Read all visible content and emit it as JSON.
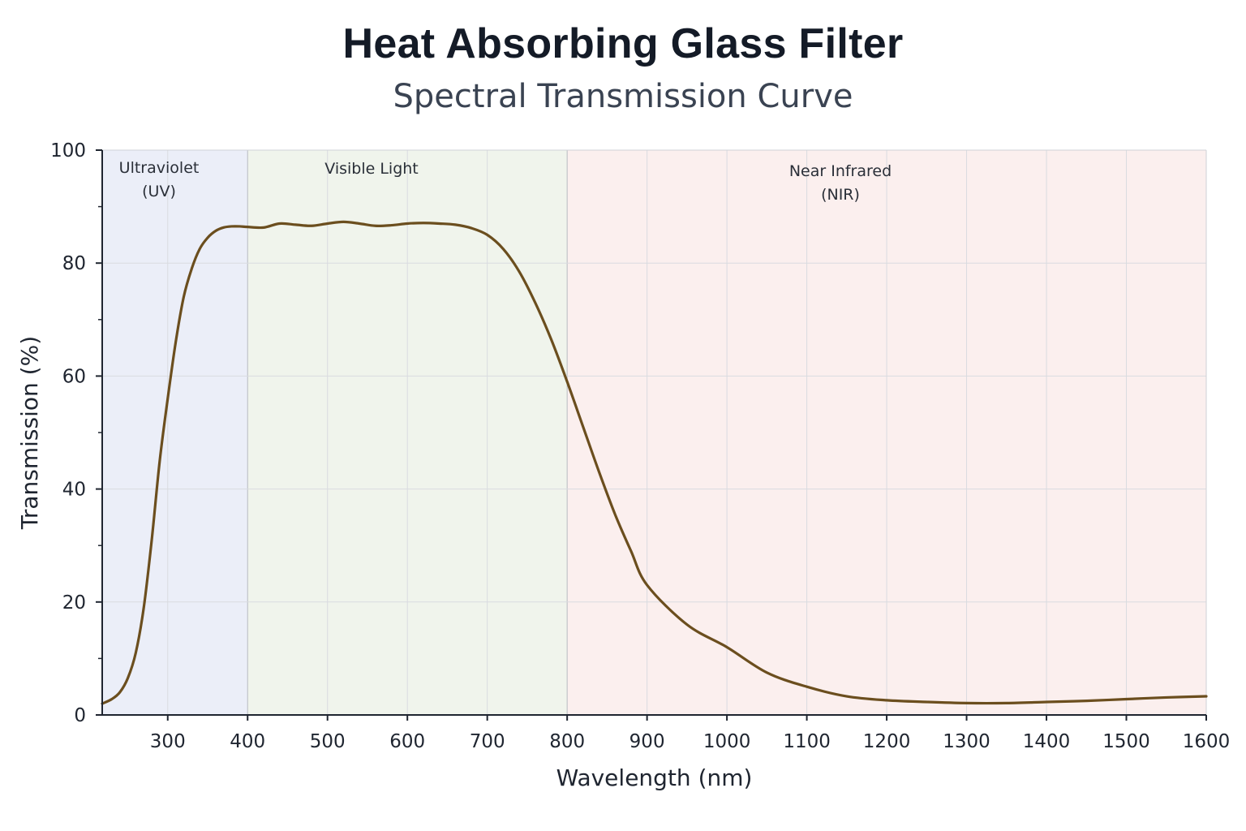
{
  "chart_data": {
    "type": "line",
    "title": "Heat Absorbing Glass Filter",
    "subtitle": "Spectral Transmission Curve",
    "xlabel": "Wavelength (nm)",
    "ylabel": "Transmission (%)",
    "xlim": [
      218,
      1600
    ],
    "ylim": [
      0,
      100
    ],
    "xticks": [
      300,
      400,
      500,
      600,
      700,
      800,
      900,
      1000,
      1100,
      1200,
      1300,
      1400,
      1500,
      1600
    ],
    "yticks": [
      0,
      20,
      40,
      60,
      80,
      100
    ],
    "grid": true,
    "regions": [
      {
        "label": [
          "Ultraviolet",
          "(UV)"
        ],
        "x_range": [
          218,
          400
        ],
        "color": "#ebeef8"
      },
      {
        "label": [
          "Visible Light"
        ],
        "x_range": [
          400,
          800
        ],
        "color": "#f0f4ec"
      },
      {
        "label": [
          "Near Infrared",
          "(NIR)"
        ],
        "x_range": [
          800,
          1600
        ],
        "color": "#fbefee"
      }
    ],
    "series": [
      {
        "color": "#6b4e1e",
        "x": [
          218,
          230,
          240,
          250,
          260,
          270,
          280,
          290,
          300,
          310,
          320,
          330,
          340,
          350,
          360,
          370,
          380,
          390,
          400,
          420,
          440,
          460,
          480,
          500,
          520,
          540,
          560,
          580,
          600,
          620,
          640,
          660,
          680,
          700,
          720,
          740,
          760,
          780,
          800,
          820,
          840,
          860,
          880,
          900,
          950,
          1000,
          1050,
          1100,
          1150,
          1200,
          1250,
          1300,
          1350,
          1400,
          1450,
          1500,
          1550,
          1600
        ],
        "y": [
          2,
          2.8,
          4,
          6.5,
          11,
          19,
          31,
          45,
          56,
          66,
          74,
          79,
          82.5,
          84.5,
          85.7,
          86.3,
          86.5,
          86.5,
          86.4,
          86.3,
          87,
          86.8,
          86.6,
          87,
          87.3,
          87,
          86.6,
          86.7,
          87,
          87.1,
          87,
          86.8,
          86.2,
          85,
          82.5,
          78.5,
          73,
          66.5,
          59,
          51,
          43,
          35.5,
          29,
          23,
          16,
          12,
          7.5,
          5,
          3.3,
          2.6,
          2.3,
          2.1,
          2.1,
          2.3,
          2.5,
          2.8,
          3.1,
          3.3
        ]
      }
    ]
  }
}
